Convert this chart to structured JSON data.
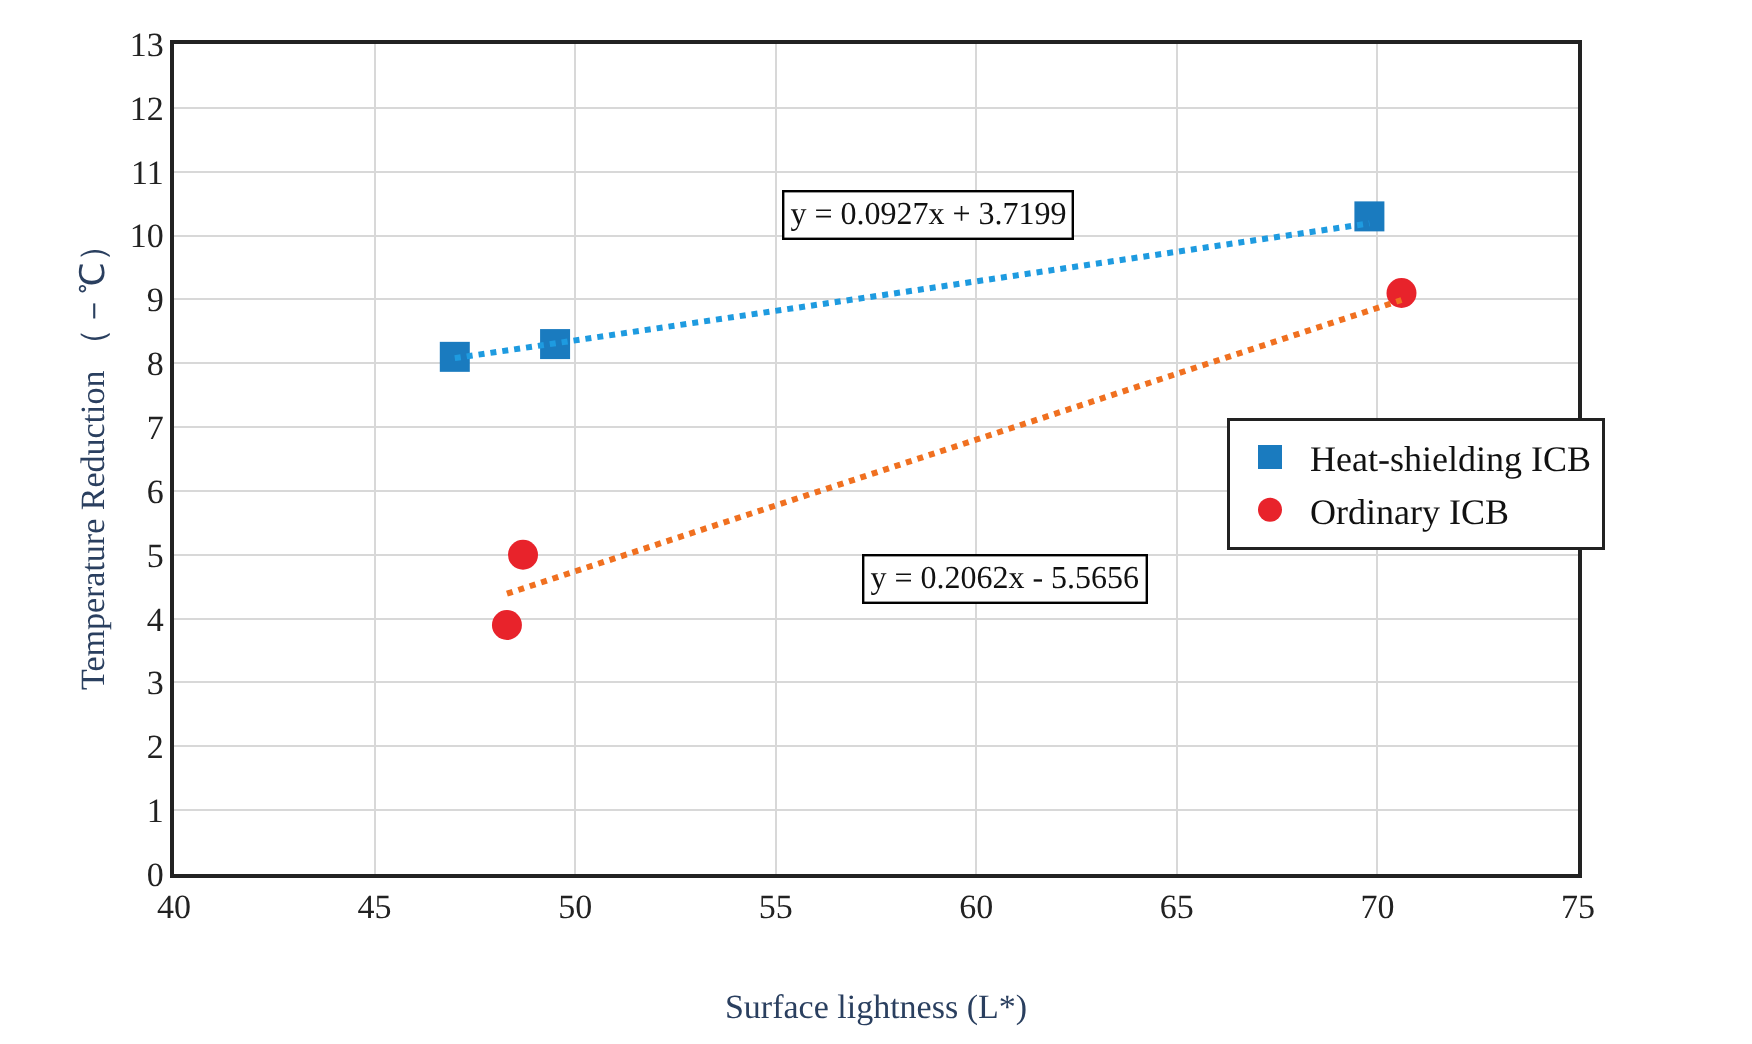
{
  "chart_data": {
    "type": "scatter",
    "xlabel": "Surface lightness (L*)",
    "ylabel": "Temperature Reduction （－℃）",
    "xlim": [
      40,
      75
    ],
    "xticks": [
      40,
      45,
      50,
      55,
      60,
      65,
      70,
      75
    ],
    "ylim": [
      0,
      13
    ],
    "yticks": [
      0,
      1,
      2,
      3,
      4,
      5,
      6,
      7,
      8,
      9,
      10,
      11,
      12,
      13
    ],
    "grid": true,
    "legend": "right",
    "series": [
      {
        "name": "Heat-shielding ICB",
        "color": "#1a7bbf",
        "marker": "square",
        "x": [
          47.0,
          49.5,
          69.8
        ],
        "values": [
          8.1,
          8.3,
          10.3
        ]
      },
      {
        "name": "Ordinary ICB",
        "color": "#e8232b",
        "marker": "circle",
        "x": [
          48.3,
          48.7,
          70.6
        ],
        "values": [
          3.9,
          5.0,
          9.1
        ]
      },
      {
        "type": "line",
        "color": "#1e9be0",
        "line_style": "dotted",
        "x": [
          47.0,
          69.8
        ],
        "values": [
          8.08,
          10.19
        ]
      },
      {
        "type": "line",
        "color": "#f07020",
        "line_style": "dotted",
        "x": [
          48.3,
          70.6
        ],
        "values": [
          4.39,
          8.99
        ]
      }
    ],
    "annotations": [
      "y = 0.0927x + 3.7199",
      "y = 0.2062x - 5.5656"
    ]
  }
}
